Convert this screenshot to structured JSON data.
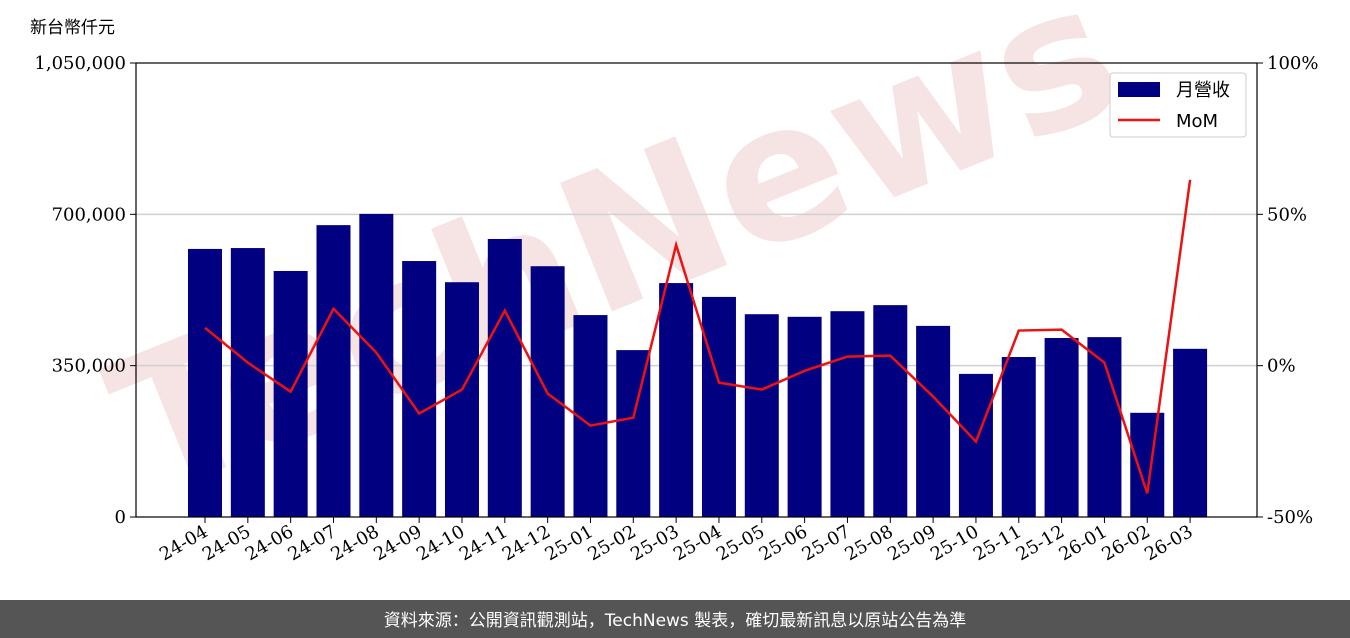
{
  "chart_data": {
    "type": "bar-line",
    "unit_label": "新台幣仟元",
    "watermark": "TechNews",
    "footer": "資料來源：公開資訊觀測站，TechNews 製表，確切最新訊息以原站公告為準",
    "categories": [
      "24-04",
      "24-05",
      "24-06",
      "24-07",
      "24-08",
      "24-09",
      "24-10",
      "24-11",
      "24-12",
      "25-01",
      "25-02",
      "25-03",
      "25-04",
      "25-05",
      "25-06",
      "25-07",
      "25-08",
      "25-09",
      "25-10",
      "25-11",
      "25-12",
      "26-01",
      "26-02",
      "26-03"
    ],
    "series": [
      {
        "name": "月營收",
        "color": "#000080",
        "type": "bar",
        "values": [
          620000,
          622000,
          569000,
          675000,
          701000,
          592000,
          543000,
          643000,
          580000,
          467000,
          386000,
          541000,
          509000,
          469000,
          463000,
          476000,
          490000,
          442000,
          331000,
          370000,
          414000,
          416000,
          241000,
          389000
        ]
      },
      {
        "name": "MoM",
        "color": "#ee1111",
        "type": "line",
        "axis": "y2",
        "values": [
          12.5,
          1,
          -8.6,
          18.8,
          4.3,
          -15.8,
          -7.9,
          18.2,
          -9.2,
          -19.8,
          -17.2,
          39.9,
          -5.6,
          -7.9,
          -1.7,
          3,
          3.3,
          -10.2,
          -25.1,
          11.6,
          11.9,
          1,
          -42.2,
          61.4
        ]
      }
    ],
    "ylim": [
      0,
      1050000
    ],
    "yticks": [
      0,
      {
        "value": 350000,
        "label": "350,000"
      },
      {
        "value": 700000,
        "label": "700,000"
      },
      {
        "value": 1050000,
        "label": "1,050,000"
      }
    ],
    "y2lim": [
      -50,
      100
    ],
    "y2ticks": [
      {
        "value": -50,
        "label": "-50%"
      },
      {
        "value": 0,
        "label": "0%"
      },
      {
        "value": 50,
        "label": "50%"
      },
      {
        "value": 100,
        "label": "100%"
      }
    ],
    "grid": true,
    "legend": "upper right"
  }
}
